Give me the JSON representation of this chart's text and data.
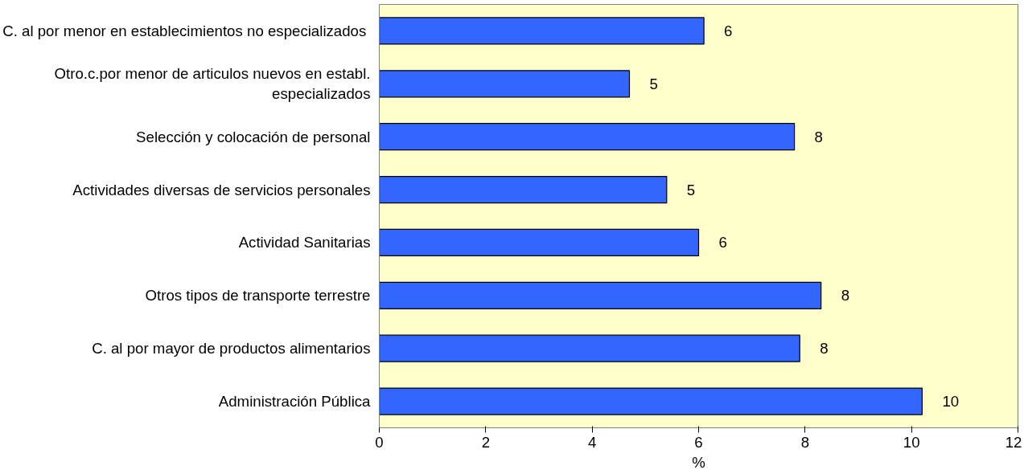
{
  "chart_data": {
    "type": "bar",
    "orientation": "horizontal",
    "xlabel": "%",
    "categories": [
      "C. al  por menor en establecimientos no especializados",
      "Otro.c.por menor de articulos nuevos en establ. especializados",
      "Selección y colocación de personal",
      "Actividades diversas de servicios personales",
      "Actividad Sanitarias",
      "Otros tipos de transporte terrestre",
      "C. al por mayor de productos alimentarios",
      "Administración Pública"
    ],
    "values": [
      6.1,
      4.7,
      7.8,
      5.4,
      6.0,
      8.3,
      7.9,
      10.2
    ],
    "value_labels": [
      "6",
      "5",
      "8",
      "5",
      "6",
      "8",
      "8",
      "10"
    ],
    "color": "#3366ff",
    "xlim": [
      0,
      12
    ],
    "xticks": [
      0,
      2,
      4,
      6,
      8,
      10,
      12
    ],
    "grid": false
  }
}
